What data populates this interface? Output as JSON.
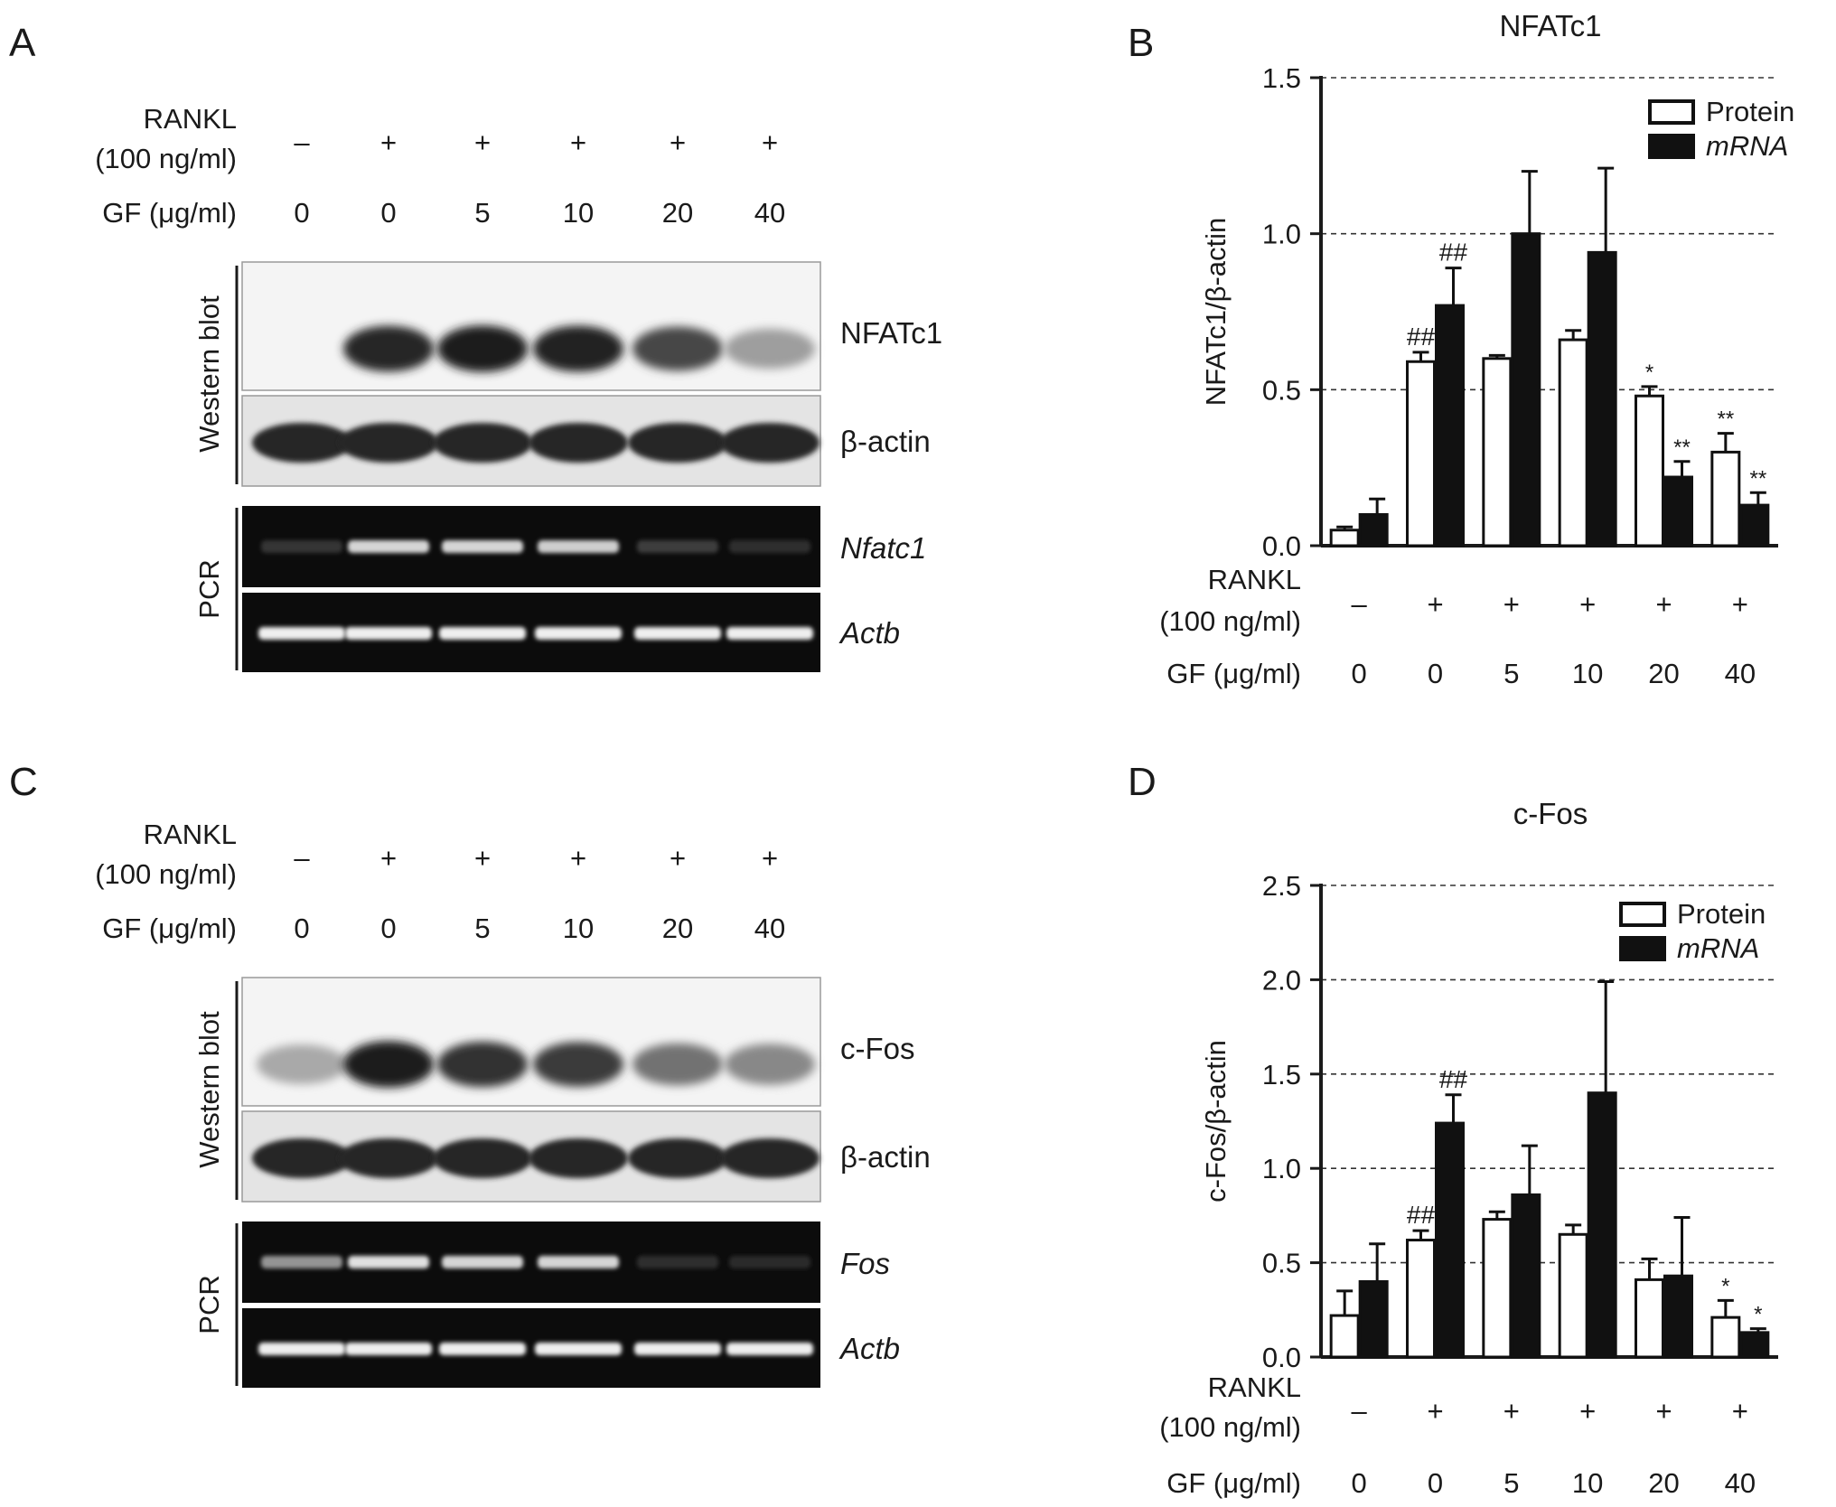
{
  "panels": {
    "A": {
      "letter": "A",
      "rankl_label": "RANKL",
      "rankl_conc": "(100 ng/ml)",
      "rankl_signs": [
        "–",
        "+",
        "+",
        "+",
        "+",
        "+"
      ],
      "gf_label": "GF (μg/ml)",
      "gf_values": [
        "0",
        "0",
        "5",
        "10",
        "20",
        "40"
      ],
      "western_blot_label": "Western blot",
      "pcr_label": "PCR",
      "band_labels": [
        "NFATc1",
        "β-actin",
        "Nfatc1",
        "Actb"
      ],
      "wb_target_intensity": [
        0.0,
        0.9,
        0.95,
        0.92,
        0.75,
        0.35
      ],
      "pcr_target_intensity": [
        0.1,
        0.85,
        0.85,
        0.82,
        0.15,
        0.08
      ]
    },
    "C": {
      "letter": "C",
      "rankl_label": "RANKL",
      "rankl_conc": "(100 ng/ml)",
      "rankl_signs": [
        "–",
        "+",
        "+",
        "+",
        "+",
        "+"
      ],
      "gf_label": "GF (μg/ml)",
      "gf_values": [
        "0",
        "0",
        "5",
        "10",
        "20",
        "40"
      ],
      "western_blot_label": "Western blot",
      "pcr_label": "PCR",
      "band_labels": [
        "c-Fos",
        "β-actin",
        "Fos",
        "Actb"
      ],
      "wb_target_intensity": [
        0.3,
        0.95,
        0.85,
        0.8,
        0.55,
        0.45
      ],
      "pcr_target_intensity": [
        0.55,
        0.9,
        0.85,
        0.85,
        0.08,
        0.05
      ]
    }
  },
  "chart_data": [
    {
      "panel": "B",
      "type": "bar",
      "title": "NFATc1",
      "ylabel": "NFATc1/β-actin",
      "ylim": [
        0,
        1.5
      ],
      "yticks": [
        "0.0",
        "0.5",
        "1.0",
        "1.5"
      ],
      "grid": "dashed horizontal",
      "legend_position": "top-right",
      "categories": [
        "0",
        "0",
        "5",
        "10",
        "20",
        "40"
      ],
      "rankl_label": "RANKL",
      "rankl_conc": "(100 ng/ml)",
      "rankl_signs": [
        "–",
        "+",
        "+",
        "+",
        "+",
        "+"
      ],
      "gf_label": "GF (μg/ml)",
      "series": [
        {
          "name": "Protein",
          "fill": "#ffffff",
          "values": [
            0.05,
            0.59,
            0.6,
            0.66,
            0.48,
            0.3
          ],
          "errors": [
            0.01,
            0.03,
            0.01,
            0.03,
            0.03,
            0.06
          ],
          "annotations": [
            "",
            "##",
            "",
            "",
            "*",
            "**"
          ]
        },
        {
          "name": "mRNA",
          "fill": "#111111",
          "values": [
            0.1,
            0.77,
            1.0,
            0.94,
            0.22,
            0.13
          ],
          "errors": [
            0.05,
            0.12,
            0.2,
            0.27,
            0.05,
            0.04
          ],
          "annotations": [
            "",
            "##",
            "",
            "",
            "**",
            "**"
          ]
        }
      ]
    },
    {
      "panel": "D",
      "type": "bar",
      "title": "c-Fos",
      "ylabel": "c-Fos/β-actin",
      "ylim": [
        0,
        2.5
      ],
      "yticks": [
        "0.0",
        "0.5",
        "1.0",
        "1.5",
        "2.0",
        "2.5"
      ],
      "grid": "dashed horizontal",
      "legend_position": "top-right",
      "categories": [
        "0",
        "0",
        "5",
        "10",
        "20",
        "40"
      ],
      "rankl_label": "RANKL",
      "rankl_conc": "(100 ng/ml)",
      "rankl_signs": [
        "–",
        "+",
        "+",
        "+",
        "+",
        "+"
      ],
      "gf_label": "GF (μg/ml)",
      "series": [
        {
          "name": "Protein",
          "fill": "#ffffff",
          "values": [
            0.22,
            0.62,
            0.73,
            0.65,
            0.41,
            0.21
          ],
          "errors": [
            0.13,
            0.05,
            0.04,
            0.05,
            0.11,
            0.09
          ],
          "annotations": [
            "",
            "##",
            "",
            "",
            "",
            "*"
          ]
        },
        {
          "name": "mRNA",
          "fill": "#111111",
          "values": [
            0.4,
            1.24,
            0.86,
            1.4,
            0.43,
            0.13
          ],
          "errors": [
            0.2,
            0.15,
            0.26,
            0.59,
            0.31,
            0.02
          ],
          "annotations": [
            "",
            "##",
            "",
            "",
            "",
            "*"
          ]
        }
      ]
    }
  ]
}
